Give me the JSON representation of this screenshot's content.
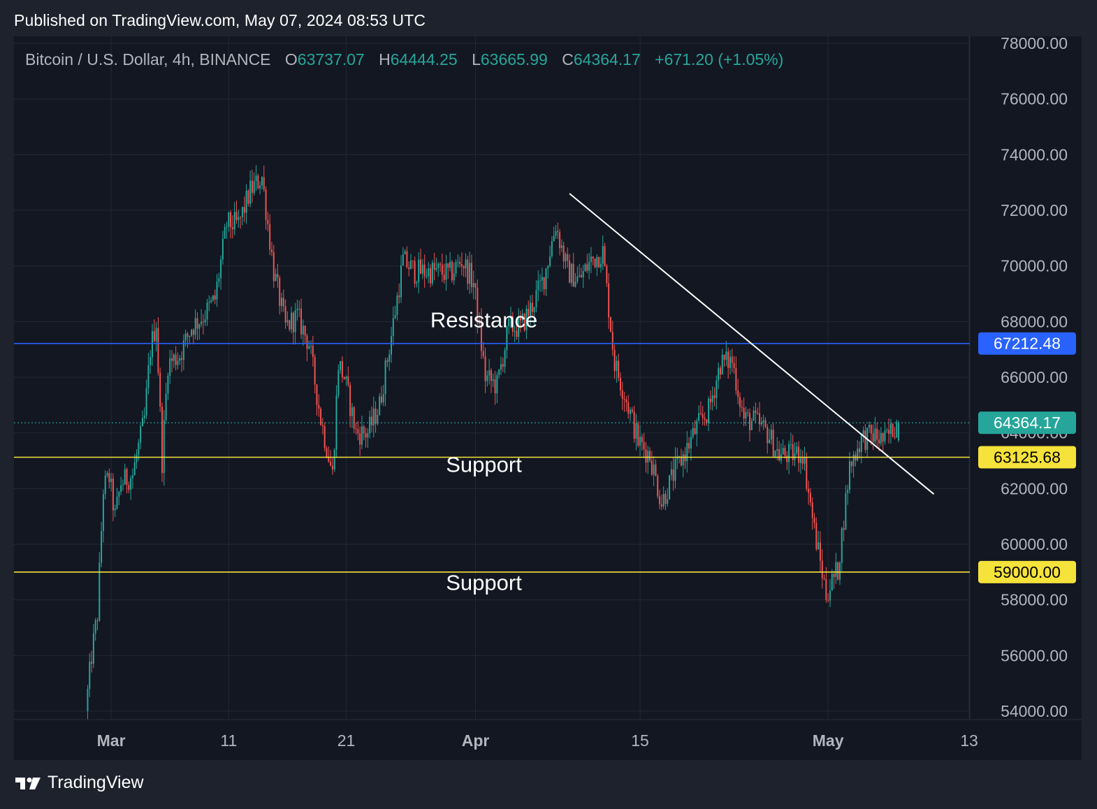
{
  "header": {
    "published": "Published on TradingView.com, May 07, 2024 08:53 UTC"
  },
  "legend": {
    "symbol": "Bitcoin / U.S. Dollar, 4h, BINANCE",
    "o_label": "O",
    "o_value": "63737.07",
    "h_label": "H",
    "h_value": "64444.25",
    "l_label": "L",
    "l_value": "63665.99",
    "c_label": "C",
    "c_value": "64364.17",
    "change": "+671.20 (+1.05%)"
  },
  "footer": {
    "brand": "TradingView",
    "logo_icon": "tradingview-logo-icon"
  },
  "chart_data": {
    "type": "candlestick",
    "symbol": "Bitcoin / U.S. Dollar",
    "interval": "4h",
    "exchange": "BINANCE",
    "y_axis": {
      "position": "right",
      "ticks": [
        "78000.00",
        "76000.00",
        "74000.00",
        "72000.00",
        "70000.00",
        "68000.00",
        "66000.00",
        "64000.00",
        "62000.00",
        "60000.00",
        "58000.00",
        "56000.00",
        "54000.00"
      ],
      "ylim": [
        53900,
        78100
      ]
    },
    "x_axis": {
      "ticks": [
        {
          "label": "Mar",
          "date": "2024-03-01"
        },
        {
          "label": "11",
          "date": "2024-03-11"
        },
        {
          "label": "21",
          "date": "2024-03-21"
        },
        {
          "label": "Apr",
          "date": "2024-04-01"
        },
        {
          "label": "15",
          "date": "2024-04-15"
        },
        {
          "label": "May",
          "date": "2024-05-01"
        },
        {
          "label": "13",
          "date": "2024-05-13"
        }
      ],
      "xlim": [
        "2024-02-25",
        "2024-05-13"
      ]
    },
    "grid": true,
    "colors": {
      "up": "#26a69a",
      "down": "#ef5350",
      "background": "#131722",
      "grid": "#232834",
      "resistance": "#2962ff",
      "support": "#f5e23a",
      "trendline": "#ffffff",
      "last_price": "#26a69a"
    },
    "price_path": [
      [
        "2024-02-28",
        54000
      ],
      [
        "2024-02-28T12",
        56000
      ],
      [
        "2024-02-29",
        57500
      ],
      [
        "2024-02-29T12",
        62000
      ],
      [
        "2024-03-01",
        62400
      ],
      [
        "2024-03-01T12",
        61000
      ],
      [
        "2024-03-02",
        62200
      ],
      [
        "2024-03-03",
        62500
      ],
      [
        "2024-03-04",
        64500
      ],
      [
        "2024-03-04T12",
        67000
      ],
      [
        "2024-03-05",
        68000
      ],
      [
        "2024-03-05T12",
        63000
      ],
      [
        "2024-03-06",
        66500
      ],
      [
        "2024-03-07",
        66800
      ],
      [
        "2024-03-08",
        67800
      ],
      [
        "2024-03-09",
        68200
      ],
      [
        "2024-03-10",
        68800
      ],
      [
        "2024-03-11",
        71500
      ],
      [
        "2024-03-12",
        71500
      ],
      [
        "2024-03-13",
        72700
      ],
      [
        "2024-03-14",
        73200
      ],
      [
        "2024-03-15",
        69800
      ],
      [
        "2024-03-16",
        67800
      ],
      [
        "2024-03-17",
        68200
      ],
      [
        "2024-03-18",
        67200
      ],
      [
        "2024-03-19",
        64500
      ],
      [
        "2024-03-20",
        62500
      ],
      [
        "2024-03-20T12",
        66500
      ],
      [
        "2024-03-21",
        66000
      ],
      [
        "2024-03-22",
        64000
      ],
      [
        "2024-03-23",
        64000
      ],
      [
        "2024-03-24",
        65000
      ],
      [
        "2024-03-25",
        67500
      ],
      [
        "2024-03-26",
        70200
      ],
      [
        "2024-03-27",
        69800
      ],
      [
        "2024-03-28",
        69800
      ],
      [
        "2024-03-29",
        69800
      ],
      [
        "2024-03-30",
        69700
      ],
      [
        "2024-03-31",
        70200
      ],
      [
        "2024-04-01",
        69400
      ],
      [
        "2024-04-02",
        66000
      ],
      [
        "2024-04-03",
        65700
      ],
      [
        "2024-04-04",
        67800
      ],
      [
        "2024-04-05",
        67800
      ],
      [
        "2024-04-06",
        68600
      ],
      [
        "2024-04-07",
        69600
      ],
      [
        "2024-04-08",
        71500
      ],
      [
        "2024-04-09",
        69800
      ],
      [
        "2024-04-10",
        69500
      ],
      [
        "2024-04-11",
        70200
      ],
      [
        "2024-04-12",
        70500
      ],
      [
        "2024-04-13",
        66500
      ],
      [
        "2024-04-14",
        65200
      ],
      [
        "2024-04-15",
        63700
      ],
      [
        "2024-04-16",
        63200
      ],
      [
        "2024-04-17",
        61500
      ],
      [
        "2024-04-18",
        62500
      ],
      [
        "2024-04-19",
        63300
      ],
      [
        "2024-04-20",
        64200
      ],
      [
        "2024-04-21",
        64800
      ],
      [
        "2024-04-22",
        66500
      ],
      [
        "2024-04-23",
        66600
      ],
      [
        "2024-04-24",
        64500
      ],
      [
        "2024-04-25",
        64400
      ],
      [
        "2024-04-26",
        64000
      ],
      [
        "2024-04-27",
        63200
      ],
      [
        "2024-04-28",
        63200
      ],
      [
        "2024-04-29",
        63300
      ],
      [
        "2024-04-30",
        60500
      ],
      [
        "2024-05-01",
        58200
      ],
      [
        "2024-05-02",
        59100
      ],
      [
        "2024-05-03",
        62800
      ],
      [
        "2024-05-04",
        63800
      ],
      [
        "2024-05-05",
        63900
      ],
      [
        "2024-05-06",
        63700
      ],
      [
        "2024-05-07",
        64364
      ]
    ],
    "last_candle": {
      "open": 63737.07,
      "high": 64444.25,
      "low": 63665.99,
      "close": 64364.17
    },
    "price_labels": [
      {
        "name": "resistance-price",
        "value": 67212.48,
        "text": "67212.48"
      },
      {
        "name": "last-price",
        "value": 64364.17,
        "text": "64364.17"
      },
      {
        "name": "support-price-1",
        "value": 63125.68,
        "text": "63125.68"
      },
      {
        "name": "support-price-2",
        "value": 59000.0,
        "text": "59000.00"
      }
    ],
    "horizontal_lines": [
      {
        "name": "resistance-line",
        "value": 67212.48,
        "color": "#2962ff"
      },
      {
        "name": "support-line-1",
        "value": 63125.68,
        "color": "#f5e23a"
      },
      {
        "name": "support-line-2",
        "value": 59000.0,
        "color": "#f5e23a"
      }
    ],
    "trendline": {
      "start": [
        "2024-04-09",
        72600
      ],
      "end": [
        "2024-05-10",
        61800
      ]
    },
    "annotations": [
      {
        "name": "resistance-annotation",
        "text": "Resistance",
        "date": "2024-04-01",
        "value": 67800
      },
      {
        "name": "support-annotation-1",
        "text": "Support",
        "date": "2024-04-01",
        "value": 62600
      },
      {
        "name": "support-annotation-2",
        "text": "Support",
        "date": "2024-04-01",
        "value": 58350
      }
    ]
  }
}
